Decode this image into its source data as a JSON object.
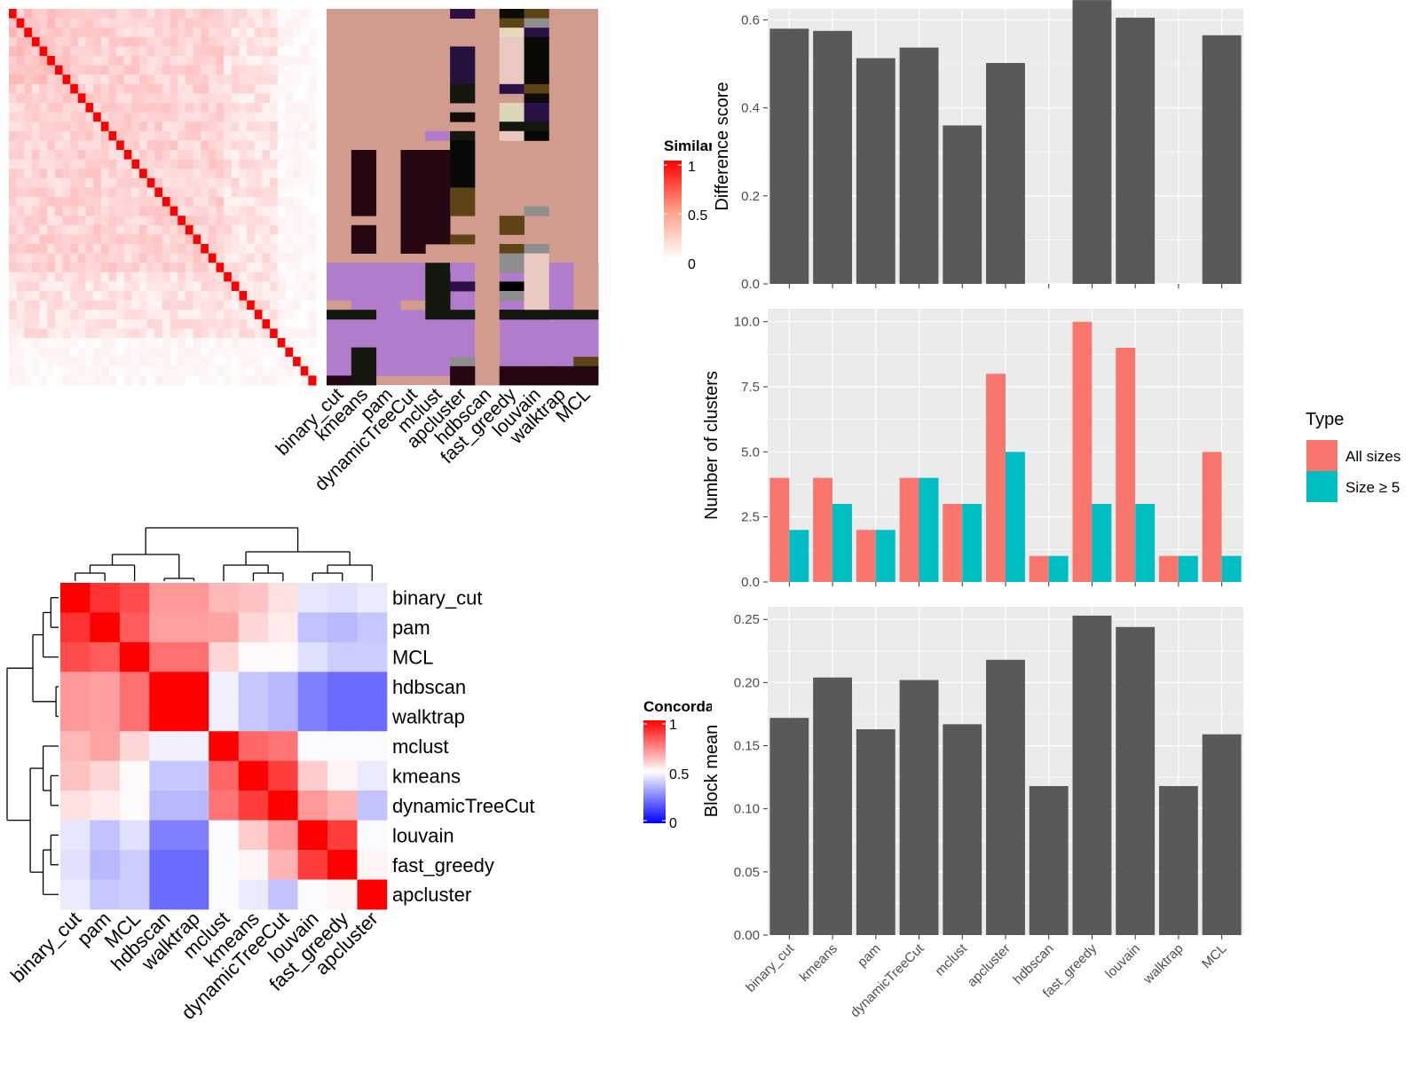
{
  "chart_data": [
    {
      "type": "heatmap",
      "size": 40,
      "color_scale": [
        "#FFFFFF",
        "#FF0000"
      ],
      "legend": {
        "title": "Similarity",
        "ticks": [
          "1",
          "0.5",
          "0"
        ]
      }
    },
    {
      "type": "heatmap",
      "columns": [
        "binary_cut",
        "kmeans",
        "pam",
        "dynamicTreeCut",
        "mclust",
        "apcluster",
        "hdbscan",
        "fast_greedy",
        "louvain",
        "walktrap",
        "MCL"
      ]
    },
    {
      "type": "bar",
      "categories": [
        "binary_cut",
        "kmeans",
        "pam",
        "dynamicTreeCut",
        "mclust",
        "apcluster",
        "hdbscan",
        "fast_greedy",
        "louvain",
        "walktrap",
        "MCL"
      ],
      "values": [
        0.58,
        0.575,
        0.513,
        0.537,
        0.36,
        0.502,
        0,
        0.645,
        0.605,
        0,
        0.565
      ],
      "ylabel": "Difference score",
      "ylim": [
        0,
        0.625
      ],
      "yticks": [
        "0.0",
        "0.2",
        "0.4",
        "0.6"
      ]
    },
    {
      "type": "bar",
      "categories": [
        "binary_cut",
        "kmeans",
        "pam",
        "dynamicTreeCut",
        "mclust",
        "apcluster",
        "hdbscan",
        "fast_greedy",
        "louvain",
        "walktrap",
        "MCL"
      ],
      "series": [
        {
          "name": "All sizes",
          "color": "#F8766D",
          "values": [
            4,
            4,
            2,
            4,
            3,
            8,
            1,
            10,
            9,
            1,
            5
          ]
        },
        {
          "name": "Size ≥ 5",
          "color": "#00BFC4",
          "values": [
            2,
            3,
            2,
            4,
            3,
            5,
            1,
            3,
            3,
            1,
            1
          ]
        }
      ],
      "ylabel": "Number of clusters",
      "ylim": [
        0,
        10.5
      ],
      "yticks": [
        "0.0",
        "2.5",
        "5.0",
        "7.5",
        "10.0"
      ],
      "legend": {
        "title": "Type",
        "position": "right"
      }
    },
    {
      "type": "bar",
      "categories": [
        "binary_cut",
        "kmeans",
        "pam",
        "dynamicTreeCut",
        "mclust",
        "apcluster",
        "hdbscan",
        "fast_greedy",
        "louvain",
        "walktrap",
        "MCL"
      ],
      "values": [
        0.172,
        0.204,
        0.163,
        0.202,
        0.167,
        0.218,
        0.118,
        0.253,
        0.244,
        0.118,
        0.159
      ],
      "ylabel": "Block mean",
      "ylim": [
        0,
        0.26
      ],
      "yticks": [
        "0.00",
        "0.05",
        "0.10",
        "0.15",
        "0.20",
        "0.25"
      ]
    },
    {
      "type": "heatmap",
      "labels": [
        "binary_cut",
        "pam",
        "MCL",
        "hdbscan",
        "walktrap",
        "mclust",
        "kmeans",
        "dynamicTreeCut",
        "louvain",
        "fast_greedy",
        "apcluster"
      ],
      "values": [
        [
          1.0,
          0.9,
          0.85,
          0.7,
          0.7,
          0.64,
          0.62,
          0.56,
          0.45,
          0.44,
          0.46
        ],
        [
          0.9,
          1.0,
          0.82,
          0.69,
          0.69,
          0.68,
          0.58,
          0.54,
          0.38,
          0.36,
          0.39
        ],
        [
          0.85,
          0.82,
          1.0,
          0.78,
          0.78,
          0.58,
          0.51,
          0.51,
          0.44,
          0.4,
          0.4
        ],
        [
          0.7,
          0.69,
          0.78,
          1.0,
          1.0,
          0.47,
          0.39,
          0.36,
          0.25,
          0.21,
          0.21
        ],
        [
          0.7,
          0.69,
          0.78,
          1.0,
          1.0,
          0.47,
          0.39,
          0.36,
          0.25,
          0.21,
          0.21
        ],
        [
          0.64,
          0.68,
          0.58,
          0.47,
          0.47,
          1.0,
          0.8,
          0.77,
          0.49,
          0.49,
          0.49
        ],
        [
          0.62,
          0.58,
          0.51,
          0.39,
          0.39,
          0.8,
          1.0,
          0.88,
          0.6,
          0.52,
          0.46
        ],
        [
          0.56,
          0.54,
          0.51,
          0.36,
          0.36,
          0.77,
          0.88,
          1.0,
          0.7,
          0.65,
          0.38
        ],
        [
          0.45,
          0.38,
          0.44,
          0.25,
          0.25,
          0.49,
          0.6,
          0.7,
          1.0,
          0.88,
          0.49
        ],
        [
          0.44,
          0.36,
          0.4,
          0.21,
          0.21,
          0.49,
          0.52,
          0.65,
          0.88,
          1.0,
          0.52
        ],
        [
          0.46,
          0.39,
          0.4,
          0.21,
          0.21,
          0.49,
          0.46,
          0.38,
          0.49,
          0.52,
          1.0
        ]
      ],
      "color_scale": [
        "#0000FF",
        "#FFFFFF",
        "#FF0000"
      ],
      "legend": {
        "title": "Concordance",
        "ticks": [
          "1",
          "0.5",
          "0"
        ]
      }
    }
  ]
}
